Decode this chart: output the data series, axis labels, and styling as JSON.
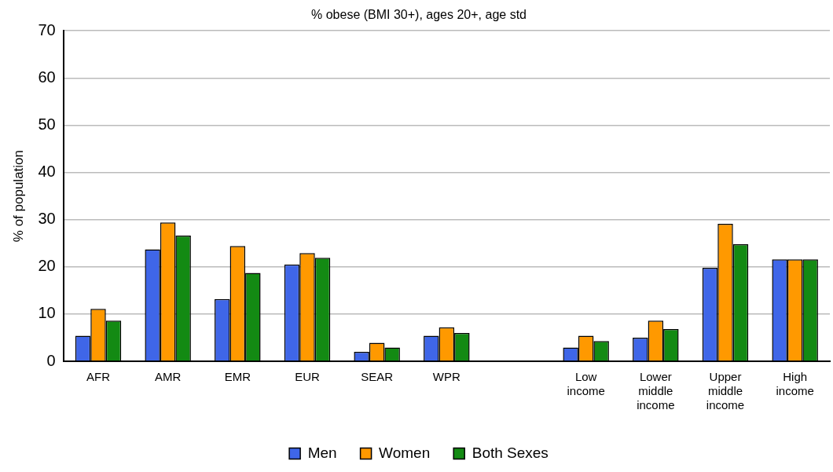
{
  "chart_data": {
    "type": "bar",
    "title": "% obese (BMI 30+), ages 20+, age std",
    "ylabel": "% of population",
    "categories": [
      "AFR",
      "AMR",
      "EMR",
      "EUR",
      "SEAR",
      "WPR",
      null,
      "Low income",
      "Lower middle income",
      "Upper middle income",
      "High income"
    ],
    "series": [
      {
        "name": "Men",
        "color": "#3f66e8",
        "values": [
          5.4,
          23.7,
          13.2,
          20.5,
          2.0,
          5.4,
          null,
          2.9,
          5.0,
          19.8,
          21.6
        ]
      },
      {
        "name": "Women",
        "color": "#ff9900",
        "values": [
          11.1,
          29.4,
          24.4,
          22.9,
          3.9,
          7.2,
          null,
          5.4,
          8.6,
          29.1,
          21.6
        ]
      },
      {
        "name": "Both Sexes",
        "color": "#138a13",
        "values": [
          8.6,
          26.6,
          18.7,
          21.9,
          2.9,
          6.0,
          null,
          4.3,
          6.8,
          24.8,
          21.6
        ]
      }
    ],
    "ylim": [
      0,
      70
    ],
    "yticks": [
      0,
      10,
      20,
      30,
      40,
      50,
      60,
      70
    ],
    "grid": "y",
    "legend": "bottom"
  }
}
